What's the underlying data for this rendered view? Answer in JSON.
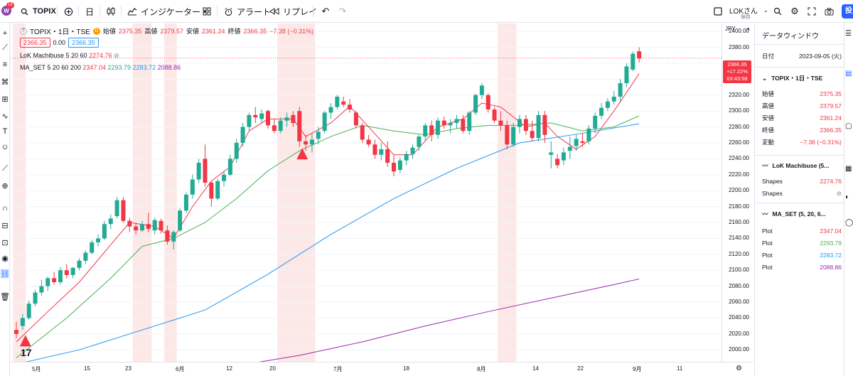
{
  "toolbar": {
    "logo_badge": "18",
    "symbol": "TOPIX",
    "interval": "日",
    "indicators_label": "インジケーター",
    "alert_label": "アラート",
    "replay_label": "リプレイ",
    "user_label": "LOKさん",
    "saved_label": "保存",
    "post_label": "投"
  },
  "legend": {
    "symbol_line": "TOPIX・1日・TSE",
    "d_badge": "D",
    "open_label": "始値",
    "open": "2375.35",
    "high_label": "高値",
    "high": "2379.57",
    "low_label": "安値",
    "low": "2361.24",
    "close_label": "終値",
    "close": "2366.35",
    "change": "−7.38 (−0.31%)",
    "bid": "2366.35",
    "spread": "0.00",
    "ask": "2366.35",
    "indicator1_name": "LoK Machibuse 5 20 60",
    "indicator1_value": "2274.76",
    "indicator1_hidden": "⊘",
    "indicator2_name": "MA_SET 5 20 60 200",
    "ma5": "2347.04",
    "ma20": "2293.79",
    "ma60": "2283.72",
    "ma200": "2088.86"
  },
  "price_axis": {
    "currency": "JPY",
    "labels": [
      "2400.00",
      "2380.00",
      "2360.00",
      "2340.00",
      "2320.00",
      "2300.00",
      "2280.00",
      "2260.00",
      "2240.00",
      "2220.00",
      "2200.00",
      "2180.00",
      "2160.00",
      "2140.00",
      "2120.00",
      "2100.00",
      "2080.00",
      "2060.00",
      "2040.00",
      "2020.00",
      "2000.00"
    ],
    "current_price": "2366.35",
    "current_change": "+17.22%",
    "countdown": "03:43:58"
  },
  "time_axis": {
    "labels": [
      "5月",
      "15",
      "23",
      "6月",
      "12",
      "20",
      "7月",
      "18",
      "8月",
      "14",
      "22",
      "9月",
      "11"
    ]
  },
  "data_window": {
    "title": "データウィンドウ",
    "date_label": "日付",
    "date_value": "2023-09-05 (火)",
    "symbol_section": "TOPIX・1日・TSE",
    "rows": [
      {
        "label": "始値",
        "value": "2375.35"
      },
      {
        "label": "高値",
        "value": "2379.57"
      },
      {
        "label": "安値",
        "value": "2361.24"
      },
      {
        "label": "終値",
        "value": "2366.35"
      },
      {
        "label": "変動",
        "value": "−7.38 (−0.31%)"
      }
    ],
    "machibuse_section": "LoK Machibuse (5...",
    "machibuse_rows": [
      {
        "label": "Shapes",
        "value": "2274.76"
      },
      {
        "label": "Shapes",
        "value": "⊘"
      }
    ],
    "maset_section": "MA_SET (5, 20, 6...",
    "maset_rows": [
      {
        "label": "Plot",
        "value": "2347.04",
        "color": "#f23645"
      },
      {
        "label": "Plot",
        "value": "2293.79",
        "color": "#4caf50"
      },
      {
        "label": "Plot",
        "value": "2283.72",
        "color": "#2196f3"
      },
      {
        "label": "Plot",
        "value": "2088.86",
        "color": "#9c27b0"
      }
    ]
  },
  "colors": {
    "up": "#22ab94",
    "down": "#f23645",
    "ma5": "#f23645",
    "ma20": "#4caf50",
    "ma60": "#2196f3",
    "ma200": "#9c27b0",
    "highlight": "#fde8e8"
  },
  "chart_data": {
    "type": "candlestick",
    "ylim": [
      1985,
      2410
    ],
    "candles": [
      [
        2025,
        2035,
        2015,
        2020
      ],
      [
        2030,
        2045,
        2025,
        2040
      ],
      [
        2040,
        2062,
        2038,
        2058
      ],
      [
        2058,
        2075,
        2055,
        2072
      ],
      [
        2072,
        2088,
        2068,
        2080
      ],
      [
        2080,
        2092,
        2074,
        2090
      ],
      [
        2090,
        2098,
        2082,
        2085
      ],
      [
        2085,
        2104,
        2082,
        2100
      ],
      [
        2100,
        2108,
        2090,
        2094
      ],
      [
        2094,
        2104,
        2090,
        2103
      ],
      [
        2103,
        2115,
        2100,
        2112
      ],
      [
        2112,
        2125,
        2108,
        2122
      ],
      [
        2122,
        2138,
        2120,
        2135
      ],
      [
        2135,
        2145,
        2130,
        2140
      ],
      [
        2140,
        2162,
        2138,
        2158
      ],
      [
        2158,
        2170,
        2152,
        2165
      ],
      [
        2168,
        2192,
        2165,
        2188
      ],
      [
        2188,
        2192,
        2160,
        2162
      ],
      [
        2162,
        2166,
        2148,
        2155
      ],
      [
        2155,
        2160,
        2145,
        2150
      ],
      [
        2150,
        2162,
        2148,
        2158
      ],
      [
        2158,
        2172,
        2148,
        2152
      ],
      [
        2150,
        2166,
        2145,
        2163
      ],
      [
        2162,
        2165,
        2146,
        2150
      ],
      [
        2150,
        2156,
        2132,
        2136
      ],
      [
        2136,
        2150,
        2126,
        2148
      ],
      [
        2150,
        2178,
        2148,
        2175
      ],
      [
        2175,
        2198,
        2172,
        2195
      ],
      [
        2195,
        2220,
        2190,
        2214
      ],
      [
        2214,
        2240,
        2210,
        2235
      ],
      [
        2240,
        2258,
        2205,
        2210
      ],
      [
        2210,
        2212,
        2180,
        2190
      ],
      [
        2190,
        2215,
        2188,
        2212
      ],
      [
        2212,
        2225,
        2205,
        2220
      ],
      [
        2220,
        2245,
        2218,
        2240
      ],
      [
        2240,
        2265,
        2235,
        2260
      ],
      [
        2260,
        2285,
        2255,
        2280
      ],
      [
        2280,
        2298,
        2275,
        2295
      ],
      [
        2295,
        2305,
        2285,
        2292
      ],
      [
        2290,
        2302,
        2285,
        2297
      ],
      [
        2300,
        2302,
        2278,
        2282
      ],
      [
        2282,
        2290,
        2272,
        2275
      ],
      [
        2275,
        2292,
        2272,
        2288
      ],
      [
        2288,
        2298,
        2280,
        2292
      ],
      [
        2295,
        2300,
        2280,
        2285
      ],
      [
        2300,
        2305,
        2255,
        2262
      ],
      [
        2262,
        2270,
        2250,
        2258
      ],
      [
        2258,
        2272,
        2248,
        2264
      ],
      [
        2265,
        2280,
        2258,
        2274
      ],
      [
        2275,
        2300,
        2272,
        2298
      ],
      [
        2298,
        2310,
        2290,
        2305
      ],
      [
        2305,
        2320,
        2302,
        2318
      ],
      [
        2312,
        2318,
        2305,
        2308
      ],
      [
        2308,
        2315,
        2298,
        2302
      ],
      [
        2298,
        2300,
        2278,
        2282
      ],
      [
        2282,
        2285,
        2260,
        2264
      ],
      [
        2264,
        2270,
        2255,
        2258
      ],
      [
        2258,
        2264,
        2240,
        2245
      ],
      [
        2245,
        2260,
        2238,
        2252
      ],
      [
        2252,
        2262,
        2230,
        2235
      ],
      [
        2235,
        2245,
        2218,
        2224
      ],
      [
        2226,
        2242,
        2222,
        2238
      ],
      [
        2238,
        2250,
        2232,
        2246
      ],
      [
        2246,
        2258,
        2240,
        2254
      ],
      [
        2255,
        2270,
        2250,
        2268
      ],
      [
        2268,
        2285,
        2262,
        2282
      ],
      [
        2282,
        2288,
        2262,
        2270
      ],
      [
        2270,
        2292,
        2265,
        2288
      ],
      [
        2288,
        2293,
        2278,
        2282
      ],
      [
        2282,
        2290,
        2272,
        2285
      ],
      [
        2285,
        2295,
        2278,
        2290
      ],
      [
        2290,
        2295,
        2272,
        2275
      ],
      [
        2275,
        2300,
        2270,
        2298
      ],
      [
        2298,
        2322,
        2295,
        2320
      ],
      [
        2320,
        2335,
        2315,
        2332
      ],
      [
        2320,
        2322,
        2298,
        2302
      ],
      [
        2302,
        2305,
        2285,
        2288
      ],
      [
        2288,
        2300,
        2275,
        2282
      ],
      [
        2282,
        2288,
        2252,
        2258
      ],
      [
        2258,
        2285,
        2255,
        2280
      ],
      [
        2280,
        2295,
        2272,
        2290
      ],
      [
        2290,
        2295,
        2270,
        2275
      ],
      [
        2275,
        2288,
        2262,
        2266
      ],
      [
        2266,
        2300,
        2262,
        2295
      ],
      [
        2295,
        2300,
        2260,
        2270
      ],
      [
        2245,
        2262,
        2228,
        2248
      ],
      [
        2240,
        2246,
        2228,
        2232
      ],
      [
        2238,
        2254,
        2232,
        2248
      ],
      [
        2250,
        2268,
        2240,
        2255
      ],
      [
        2256,
        2270,
        2250,
        2265
      ],
      [
        2262,
        2272,
        2255,
        2260
      ],
      [
        2262,
        2282,
        2258,
        2278
      ],
      [
        2278,
        2298,
        2272,
        2294
      ],
      [
        2294,
        2310,
        2290,
        2304
      ],
      [
        2304,
        2316,
        2300,
        2312
      ],
      [
        2312,
        2325,
        2308,
        2318
      ],
      [
        2318,
        2340,
        2312,
        2335
      ],
      [
        2335,
        2360,
        2330,
        2356
      ],
      [
        2352,
        2375,
        2350,
        2372
      ],
      [
        2375,
        2380,
        2361,
        2366
      ]
    ],
    "ma": [
      {
        "name": "MA 5",
        "values": [
          [
            0,
            2010
          ],
          [
            5,
            2048
          ],
          [
            10,
            2085
          ],
          [
            15,
            2132
          ],
          [
            18,
            2160
          ],
          [
            22,
            2155
          ],
          [
            25,
            2140
          ],
          [
            28,
            2180
          ],
          [
            31,
            2212
          ],
          [
            34,
            2230
          ],
          [
            37,
            2275
          ],
          [
            40,
            2290
          ],
          [
            44,
            2290
          ],
          [
            46,
            2268
          ],
          [
            50,
            2285
          ],
          [
            53,
            2306
          ],
          [
            56,
            2280
          ],
          [
            60,
            2245
          ],
          [
            63,
            2245
          ],
          [
            67,
            2280
          ],
          [
            71,
            2290
          ],
          [
            74,
            2310
          ],
          [
            77,
            2305
          ],
          [
            81,
            2280
          ],
          [
            84,
            2285
          ],
          [
            86,
            2268
          ],
          [
            89,
            2252
          ],
          [
            92,
            2268
          ],
          [
            95,
            2300
          ],
          [
            98,
            2335
          ],
          [
            99,
            2347
          ]
        ]
      },
      {
        "name": "MA 20",
        "values": [
          [
            0,
            1990
          ],
          [
            8,
            2040
          ],
          [
            15,
            2090
          ],
          [
            20,
            2130
          ],
          [
            25,
            2140
          ],
          [
            30,
            2160
          ],
          [
            35,
            2190
          ],
          [
            40,
            2225
          ],
          [
            45,
            2250
          ],
          [
            50,
            2268
          ],
          [
            55,
            2282
          ],
          [
            60,
            2275
          ],
          [
            65,
            2270
          ],
          [
            70,
            2278
          ],
          [
            75,
            2282
          ],
          [
            80,
            2282
          ],
          [
            85,
            2285
          ],
          [
            90,
            2275
          ],
          [
            95,
            2280
          ],
          [
            99,
            2294
          ]
        ]
      },
      {
        "name": "MA 60",
        "values": [
          [
            0,
            1982
          ],
          [
            10,
            2000
          ],
          [
            20,
            2025
          ],
          [
            30,
            2050
          ],
          [
            40,
            2095
          ],
          [
            50,
            2145
          ],
          [
            60,
            2190
          ],
          [
            70,
            2228
          ],
          [
            80,
            2260
          ],
          [
            90,
            2272
          ],
          [
            99,
            2284
          ]
        ]
      },
      {
        "name": "MA 200",
        "values": [
          [
            25,
            1970
          ],
          [
            35,
            1980
          ],
          [
            45,
            1993
          ],
          [
            55,
            2010
          ],
          [
            65,
            2030
          ],
          [
            75,
            2048
          ],
          [
            85,
            2065
          ],
          [
            95,
            2082
          ],
          [
            99,
            2089
          ]
        ]
      }
    ],
    "signals": [
      [
        1,
        2015
      ],
      [
        45,
        2250
      ]
    ],
    "highlights": [
      [
        0,
        1
      ],
      [
        19,
        21
      ],
      [
        24,
        25
      ],
      [
        42,
        47
      ],
      [
        77,
        79
      ]
    ]
  }
}
